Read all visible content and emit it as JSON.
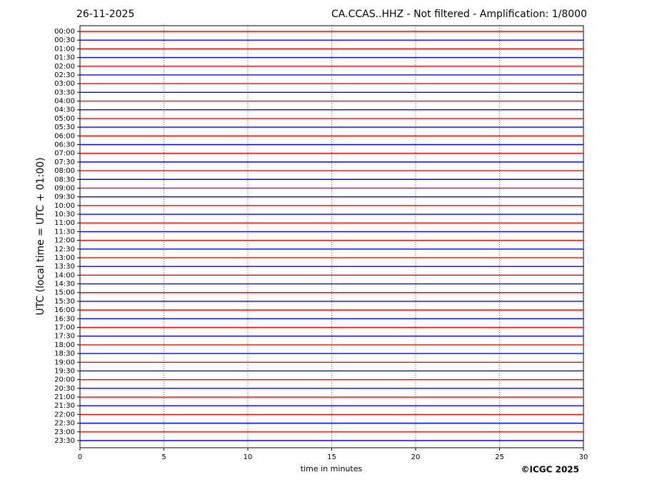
{
  "chart_data": {
    "type": "helicorder",
    "date": "26-11-2025",
    "title": "CA.CCAS..HHZ - Not filtered - Amplification: 1/8000",
    "ylabel": "UTC (local time = UTC + 01:00)",
    "xlabel": "time in minutes",
    "credit": "©ICGC 2025",
    "xlim": [
      0,
      30
    ],
    "xticks": [
      0,
      5,
      10,
      15,
      20,
      25,
      30
    ],
    "grid": true,
    "colors": [
      "#ff0000",
      "#0000ff"
    ],
    "categories": [
      "00:00",
      "00:30",
      "01:00",
      "01:30",
      "02:00",
      "02:30",
      "03:00",
      "03:30",
      "04:00",
      "04:30",
      "05:00",
      "05:30",
      "06:00",
      "06:30",
      "07:00",
      "07:30",
      "08:00",
      "08:30",
      "09:00",
      "09:30",
      "10:00",
      "10:30",
      "11:00",
      "11:30",
      "12:00",
      "12:30",
      "13:00",
      "13:30",
      "14:00",
      "14:30",
      "15:00",
      "15:30",
      "16:00",
      "16:30",
      "17:00",
      "17:30",
      "18:00",
      "18:30",
      "19:00",
      "19:30",
      "20:00",
      "20:30",
      "21:00",
      "21:30",
      "22:00",
      "22:30",
      "23:00",
      "23:30"
    ]
  }
}
